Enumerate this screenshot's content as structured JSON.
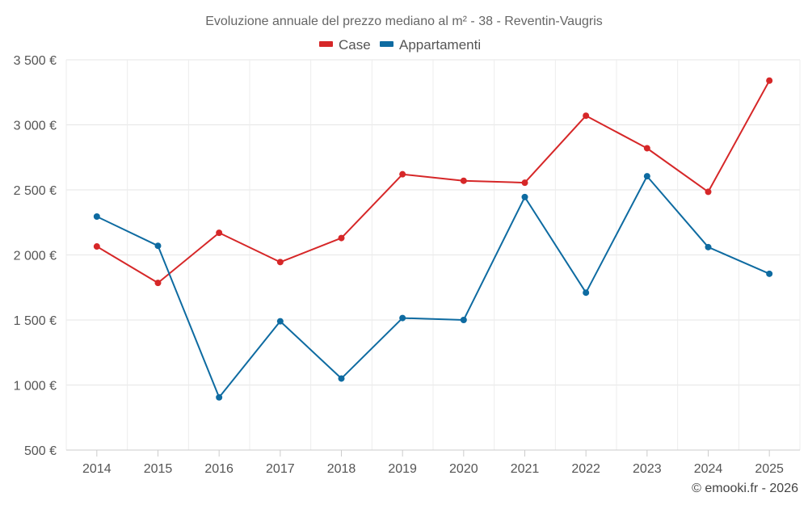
{
  "chart_data": {
    "type": "line",
    "title": "Evoluzione annuale del prezzo mediano al m² - 38 - Reventin-Vaugris",
    "categories": [
      "2014",
      "2015",
      "2016",
      "2017",
      "2018",
      "2019",
      "2020",
      "2021",
      "2022",
      "2023",
      "2024",
      "2025"
    ],
    "series": [
      {
        "name": "Case",
        "color": "#d62728",
        "values": [
          2065,
          1785,
          2170,
          1945,
          2130,
          2620,
          2570,
          2555,
          3070,
          2820,
          2485,
          3340
        ]
      },
      {
        "name": "Appartamenti",
        "color": "#0e6ba1",
        "values": [
          2295,
          2070,
          905,
          1490,
          1050,
          1515,
          1500,
          2445,
          1710,
          2605,
          2060,
          1855
        ]
      }
    ],
    "ylim": [
      500,
      3500
    ],
    "yticks": [
      {
        "value": 500,
        "label": "500 €"
      },
      {
        "value": 1000,
        "label": "1 000 €"
      },
      {
        "value": 1500,
        "label": "1 500 €"
      },
      {
        "value": 2000,
        "label": "2 000 €"
      },
      {
        "value": 2500,
        "label": "2 500 €"
      },
      {
        "value": 3000,
        "label": "3 000 €"
      },
      {
        "value": 3500,
        "label": "3 500 €"
      }
    ],
    "xlabel": "",
    "ylabel": "",
    "grid": true,
    "legend_position": "top-center"
  },
  "credit": "© emooki.fr - 2026"
}
